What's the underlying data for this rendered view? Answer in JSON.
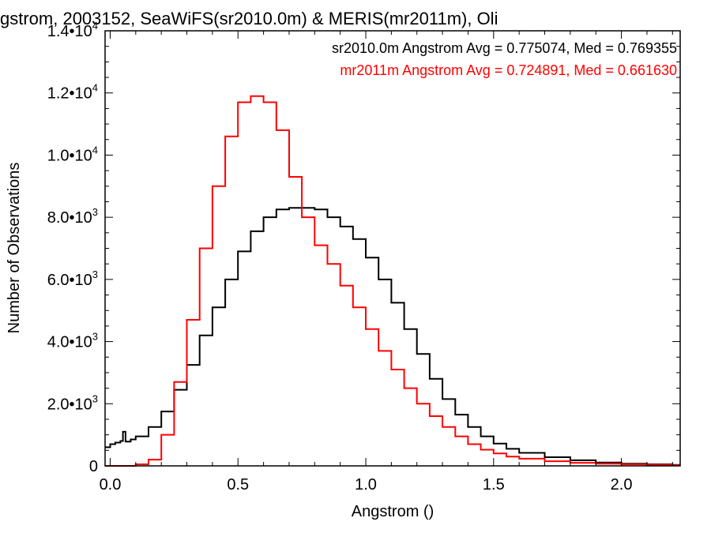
{
  "chart_data": {
    "type": "line",
    "step": true,
    "title": "gstrom, 2003152, SeaWiFS(sr2010.0m) & MERIS(mr2011m), Oli",
    "xlabel": "Angstrom ()",
    "ylabel": "Number of Observations",
    "xlim": [
      -0.02,
      2.23
    ],
    "ylim": [
      0,
      14000
    ],
    "x_ticks": [
      {
        "value": 0.0,
        "label": "0.0"
      },
      {
        "value": 0.5,
        "label": "0.5"
      },
      {
        "value": 1.0,
        "label": "1.0"
      },
      {
        "value": 1.5,
        "label": "1.5"
      },
      {
        "value": 2.0,
        "label": "2.0"
      }
    ],
    "y_ticks": [
      {
        "value": 0,
        "mant": "0",
        "exp": ""
      },
      {
        "value": 2000,
        "mant": "2.0•10",
        "exp": "3"
      },
      {
        "value": 4000,
        "mant": "4.0•10",
        "exp": "3"
      },
      {
        "value": 6000,
        "mant": "6.0•10",
        "exp": "3"
      },
      {
        "value": 8000,
        "mant": "8.0•10",
        "exp": "3"
      },
      {
        "value": 10000,
        "mant": "1.0•10",
        "exp": "4"
      },
      {
        "value": 12000,
        "mant": "1.2•10",
        "exp": "4"
      },
      {
        "value": 14000,
        "mant": "1.4•10",
        "exp": "4"
      }
    ],
    "grid": false,
    "legend_position": "top-right",
    "series": [
      {
        "name": "sr2010.0m Angstrom Avg = 0.775074, Med = 0.769355",
        "color": "#000000",
        "x": [
          -0.02,
          0.0,
          0.02,
          0.04,
          0.05,
          0.06,
          0.08,
          0.1,
          0.15,
          0.2,
          0.25,
          0.3,
          0.35,
          0.4,
          0.45,
          0.5,
          0.55,
          0.6,
          0.65,
          0.7,
          0.75,
          0.8,
          0.85,
          0.9,
          0.95,
          1.0,
          1.05,
          1.1,
          1.15,
          1.2,
          1.25,
          1.3,
          1.35,
          1.4,
          1.45,
          1.5,
          1.55,
          1.6,
          1.7,
          1.8,
          1.9,
          2.0,
          2.1,
          2.2,
          2.23
        ],
        "y": [
          600,
          700,
          750,
          800,
          1100,
          780,
          850,
          950,
          1250,
          1750,
          2450,
          3250,
          4200,
          5100,
          6000,
          6900,
          7550,
          8000,
          8250,
          8300,
          8300,
          8250,
          8000,
          7700,
          7300,
          6700,
          6000,
          5250,
          4400,
          3600,
          2800,
          2150,
          1650,
          1250,
          950,
          720,
          550,
          420,
          280,
          180,
          110,
          70,
          50,
          30,
          30
        ]
      },
      {
        "name": "mr2011m Angstrom Avg = 0.724891, Med = 0.661630",
        "color": "#ff0000",
        "x": [
          -0.02,
          0.0,
          0.05,
          0.1,
          0.15,
          0.2,
          0.25,
          0.3,
          0.35,
          0.4,
          0.45,
          0.5,
          0.55,
          0.6,
          0.65,
          0.7,
          0.75,
          0.8,
          0.85,
          0.9,
          0.95,
          1.0,
          1.05,
          1.1,
          1.15,
          1.2,
          1.25,
          1.3,
          1.35,
          1.4,
          1.45,
          1.5,
          1.55,
          1.6,
          1.7,
          1.8,
          1.9,
          2.0,
          2.1,
          2.2,
          2.23
        ],
        "y": [
          0,
          0,
          0,
          50,
          200,
          1000,
          2700,
          4700,
          7000,
          9000,
          10600,
          11700,
          11900,
          11700,
          10800,
          9300,
          8000,
          7100,
          6500,
          5800,
          5100,
          4400,
          3700,
          3100,
          2500,
          2000,
          1600,
          1250,
          950,
          700,
          520,
          400,
          300,
          230,
          150,
          100,
          70,
          50,
          35,
          20,
          20
        ]
      }
    ]
  }
}
